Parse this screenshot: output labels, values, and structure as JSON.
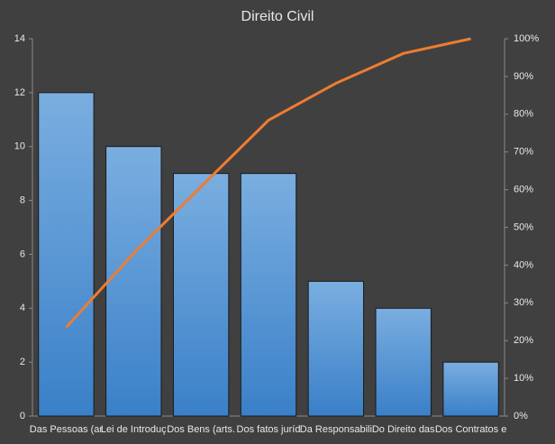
{
  "chart_data": {
    "type": "pareto",
    "title": "Direito  Civil",
    "categories": [
      "Das Pessoas (ar",
      "Lei de Introduç",
      "Dos Bens (arts.",
      "Dos fatos juríd",
      "Da Responsabili",
      "Do Direito das",
      "Dos Contratos e"
    ],
    "series": [
      {
        "type": "bar",
        "color": "#5b9bd5",
        "values": [
          12,
          10,
          9,
          9,
          5,
          4,
          2
        ]
      },
      {
        "type": "line",
        "axis": "y2",
        "color": "#ed7d31",
        "values": [
          23.5,
          43.1,
          60.8,
          78.4,
          88.2,
          96.1,
          100
        ]
      }
    ],
    "ylim": [
      0,
      14
    ],
    "yticks": [
      0,
      2,
      4,
      6,
      8,
      10,
      12,
      14
    ],
    "y2lim": [
      0,
      100
    ],
    "y2ticks": [
      {
        "value": 0,
        "label": "0%"
      },
      {
        "value": 10,
        "label": "10%"
      },
      {
        "value": 20,
        "label": "20%"
      },
      {
        "value": 30,
        "label": "30%"
      },
      {
        "value": 40,
        "label": "40%"
      },
      {
        "value": 50,
        "label": "50%"
      },
      {
        "value": 60,
        "label": "60%"
      },
      {
        "value": 70,
        "label": "70%"
      },
      {
        "value": 80,
        "label": "80%"
      },
      {
        "value": 90,
        "label": "90%"
      },
      {
        "value": 100,
        "label": "100%"
      }
    ],
    "grid": false
  }
}
